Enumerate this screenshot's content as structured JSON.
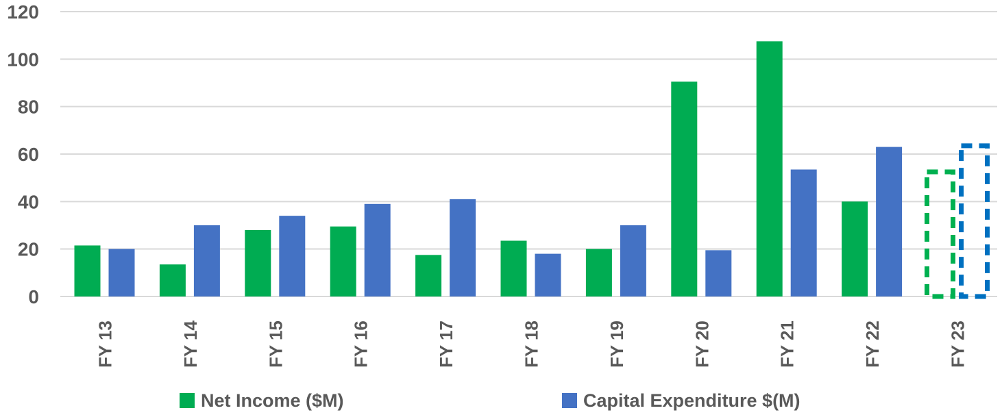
{
  "chart_data": {
    "type": "bar",
    "title": "",
    "xlabel": "",
    "ylabel": "",
    "categories": [
      "FY 13",
      "FY 14",
      "FY 15",
      "FY 16",
      "FY 17",
      "FY 18",
      "FY 19",
      "FY 20",
      "FY 21",
      "FY 22",
      "FY 23"
    ],
    "series": [
      {
        "name": "Net Income ($M)",
        "color": "#00AC52",
        "forecast_color": "#00B050",
        "values": [
          21.5,
          13.5,
          28,
          29.5,
          17.5,
          23.5,
          20,
          90.5,
          107.5,
          40,
          52.5
        ]
      },
      {
        "name": "Capital Expenditure $(M)",
        "color": "#4472C4",
        "forecast_color": "#0070C0",
        "values": [
          20,
          30,
          34,
          39,
          41,
          18,
          30,
          19.5,
          53.5,
          63,
          63.5
        ]
      }
    ],
    "last_category_forecast_dashed": true,
    "yticks": [
      0,
      20,
      40,
      60,
      80,
      100,
      120
    ],
    "ylim": [
      0,
      120
    ],
    "ytick_interval": 20,
    "grid": true,
    "legend_position": "bottom",
    "colors": {
      "axis_text": "#595959",
      "gridline": "#D9D9D9",
      "background": "#FFFFFF"
    }
  }
}
